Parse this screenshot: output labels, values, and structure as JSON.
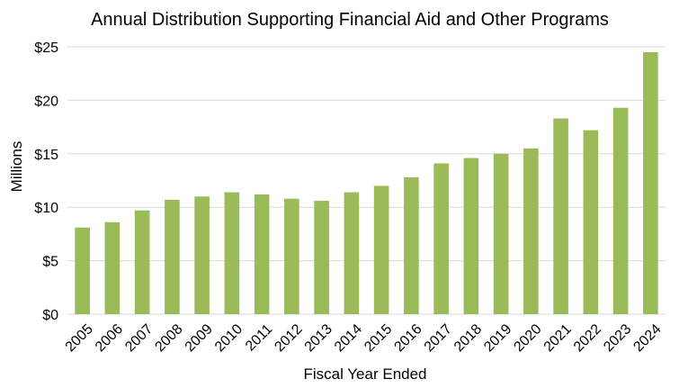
{
  "chart_data": {
    "type": "bar",
    "title": "Annual Distribution Supporting Financial Aid and Other Programs",
    "xlabel": "Fiscal Year Ended",
    "ylabel": "Millions",
    "categories": [
      "2005",
      "2006",
      "2007",
      "2008",
      "2009",
      "2010",
      "2011",
      "2012",
      "2013",
      "2014",
      "2015",
      "2016",
      "2017",
      "2018",
      "2019",
      "2020",
      "2021",
      "2022",
      "2023",
      "2024"
    ],
    "values": [
      8.1,
      8.6,
      9.7,
      10.7,
      11.0,
      11.4,
      11.2,
      10.8,
      10.6,
      11.4,
      12.0,
      12.8,
      14.1,
      14.6,
      15.0,
      15.5,
      18.3,
      17.2,
      19.3,
      24.5
    ],
    "ylim": [
      0,
      25
    ],
    "yticks": [
      0,
      5,
      10,
      15,
      20,
      25
    ],
    "ytick_labels": [
      "$0",
      "$5",
      "$10",
      "$15",
      "$20",
      "$25"
    ],
    "grid": true,
    "legend": "none",
    "colors": {
      "bar": "#9bbb59",
      "grid": "#d9d9d9",
      "text": "#000000"
    }
  }
}
